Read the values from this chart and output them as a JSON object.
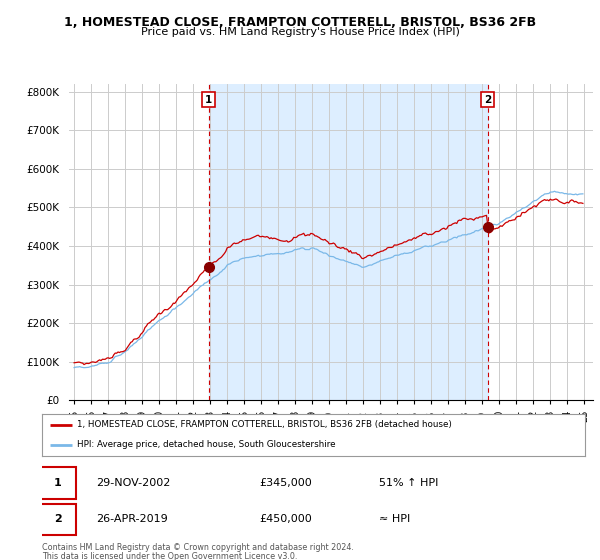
{
  "title": "1, HOMESTEAD CLOSE, FRAMPTON COTTERELL, BRISTOL, BS36 2FB",
  "subtitle": "Price paid vs. HM Land Registry's House Price Index (HPI)",
  "ylabel_ticks": [
    "£0",
    "£100K",
    "£200K",
    "£300K",
    "£400K",
    "£500K",
    "£600K",
    "£700K",
    "£800K"
  ],
  "ytick_values": [
    0,
    100000,
    200000,
    300000,
    400000,
    500000,
    600000,
    700000,
    800000
  ],
  "ylim": [
    0,
    820000
  ],
  "xlim_start": 1994.7,
  "xlim_end": 2025.5,
  "sale1_x": 2002.91,
  "sale1_y": 345000,
  "sale1_label": "1",
  "sale1_date": "29-NOV-2002",
  "sale1_price": "£345,000",
  "sale1_info": "51% ↑ HPI",
  "sale2_x": 2019.32,
  "sale2_y": 450000,
  "sale2_label": "2",
  "sale2_date": "26-APR-2019",
  "sale2_price": "£450,000",
  "sale2_info": "≈ HPI",
  "hpi_line_color": "#7ab8e8",
  "price_line_color": "#cc0000",
  "vline_color": "#cc0000",
  "shade_color": "#ddeeff",
  "background_color": "#ffffff",
  "grid_color": "#cccccc",
  "legend_label_red": "1, HOMESTEAD CLOSE, FRAMPTON COTTERELL, BRISTOL, BS36 2FB (detached house)",
  "legend_label_blue": "HPI: Average price, detached house, South Gloucestershire",
  "footer1": "Contains HM Land Registry data © Crown copyright and database right 2024.",
  "footer2": "This data is licensed under the Open Government Licence v3.0."
}
